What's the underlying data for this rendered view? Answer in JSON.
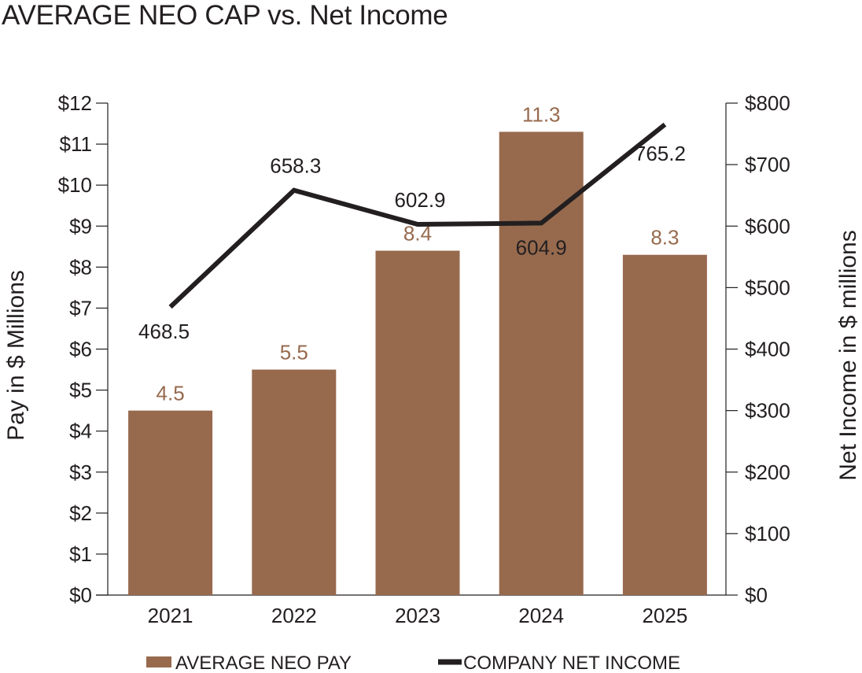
{
  "chart_data": {
    "type": "bar",
    "title": "AVERAGE NEO CAP vs. Net Income",
    "categories": [
      "2021",
      "2022",
      "2023",
      "2024",
      "2025"
    ],
    "series": [
      {
        "name": "AVERAGE NEO PAY",
        "kind": "bar",
        "axis": "left",
        "values": [
          4.5,
          5.5,
          8.4,
          11.3,
          8.3
        ],
        "color": "#976a4e"
      },
      {
        "name": "COMPANY NET INCOME",
        "kind": "line",
        "axis": "right",
        "values": [
          468.5,
          658.3,
          602.9,
          604.9,
          765.2
        ],
        "color": "#231f20"
      }
    ],
    "ylabel": "Pay in $ Millions",
    "ylim": [
      0,
      12
    ],
    "yticks": [
      "$0",
      "$1",
      "$2",
      "$3",
      "$4",
      "$5",
      "$6",
      "$7",
      "$8",
      "$9",
      "$10",
      "$11",
      "$12"
    ],
    "y2label": "Net Income in $ millions",
    "y2lim": [
      0,
      800
    ],
    "y2ticks": [
      "$0",
      "$100",
      "$200",
      "$300",
      "$400",
      "$500",
      "$600",
      "$700",
      "$800"
    ],
    "bar_labels": [
      "4.5",
      "5.5",
      "8.4",
      "11.3",
      "8.3"
    ],
    "line_labels": [
      "468.5",
      "658.3",
      "602.9",
      "604.9",
      "765.2"
    ],
    "legend": [
      {
        "label": "AVERAGE NEO PAY",
        "marker": "bar"
      },
      {
        "label": "COMPANY NET INCOME",
        "marker": "line"
      }
    ],
    "legend_position": "bottom",
    "grid": false,
    "colors": {
      "bar": "#976a4e",
      "bar_label": "#976a4e",
      "line": "#231f20",
      "text": "#231f20"
    }
  }
}
